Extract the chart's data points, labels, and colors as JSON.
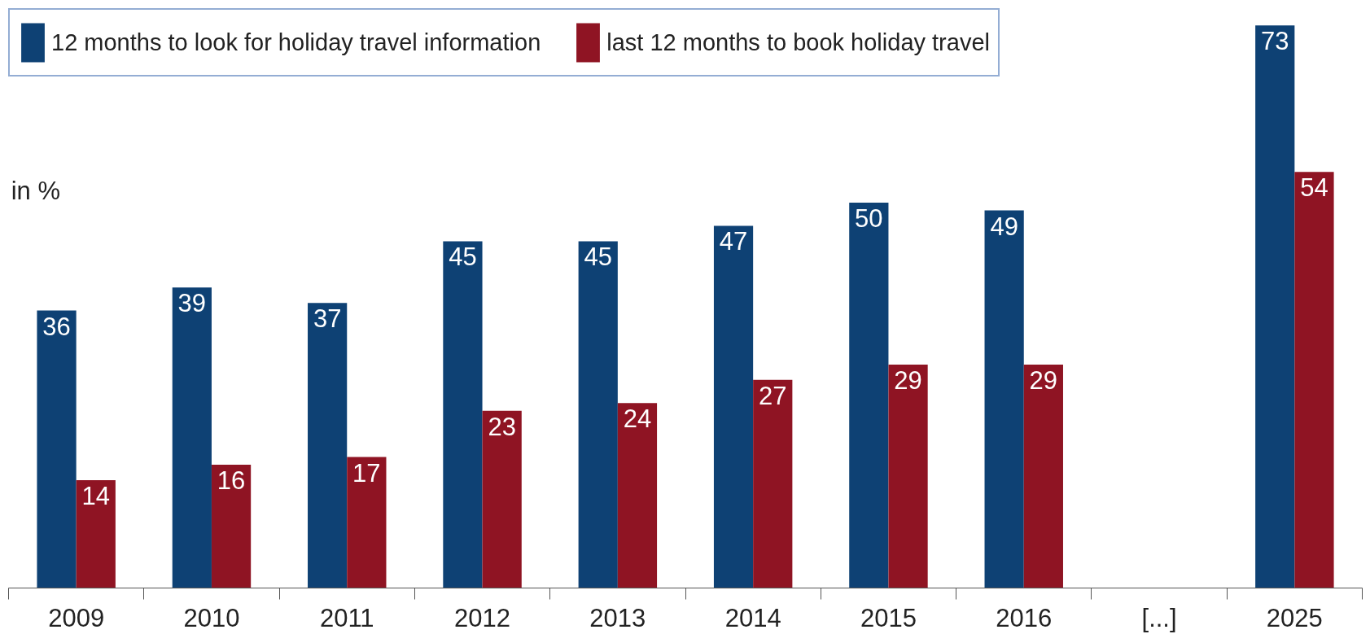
{
  "chart_data": {
    "type": "bar",
    "categories": [
      "2009",
      "2010",
      "2011",
      "2012",
      "2013",
      "2014",
      "2015",
      "2016",
      "[...]",
      "2025"
    ],
    "series": [
      {
        "name": "12 months to look for holiday travel information",
        "color": "#0e4174",
        "values": [
          36,
          39,
          37,
          45,
          45,
          47,
          50,
          49,
          null,
          73
        ]
      },
      {
        "name": "last 12 months to book holiday travel",
        "color": "#8f1423",
        "values": [
          14,
          16,
          17,
          23,
          24,
          27,
          29,
          29,
          null,
          54
        ]
      }
    ],
    "annotations": [
      "in %"
    ],
    "data_labels": true,
    "legend": "top left",
    "grid": false
  }
}
